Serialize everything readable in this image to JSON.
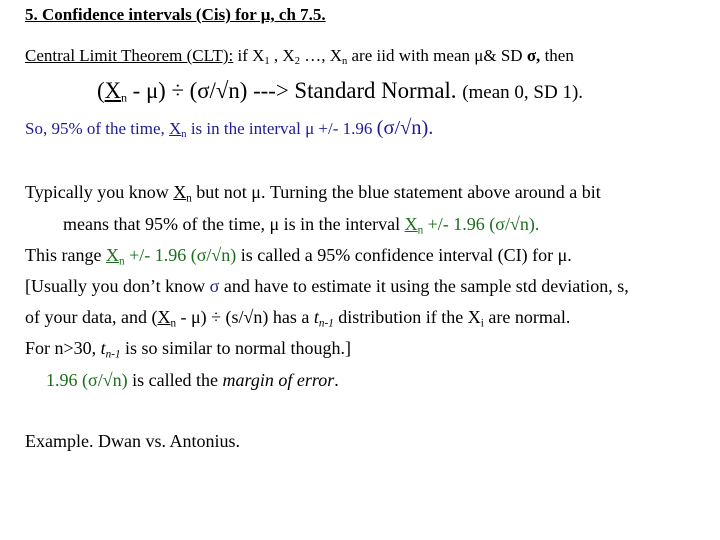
{
  "colors": {
    "blue": "#1c1c96",
    "green": "#1b6e1b"
  },
  "lines": [
    {
      "name": "slide-title",
      "segments": [
        {
          "t": "5. Confidence intervals (Cis) for μ, ch 7.5.",
          "c": "b u"
        }
      ]
    },
    {
      "name": "clt-statement",
      "segments": [
        {
          "t": "Central Limit Theorem (CLT):",
          "c": "u"
        },
        {
          "t": "   if X",
          "c": ""
        },
        {
          "t": "1",
          "c": "sub"
        },
        {
          "t": " , X",
          "c": ""
        },
        {
          "t": "2",
          "c": "sub"
        },
        {
          "t": " …, X",
          "c": ""
        },
        {
          "t": "n",
          "c": "sub"
        },
        {
          "t": "  are iid with mean μ& SD ",
          "c": ""
        },
        {
          "t": "σ,",
          "c": "b"
        },
        {
          "t": " then",
          "c": ""
        }
      ]
    },
    {
      "name": "clt-formula",
      "segments": [
        {
          "t": "(",
          "c": "big"
        },
        {
          "t": "X",
          "c": "big u"
        },
        {
          "t": "n",
          "c": "sub"
        },
        {
          "t": " - μ) ÷ (σ/√n)  ---> Standard Normal. ",
          "c": "big"
        },
        {
          "t": "(mean 0, SD 1).",
          "c": ""
        }
      ]
    },
    {
      "name": "blue-statement",
      "segments": [
        {
          "t": "So, 95% of the time, ",
          "c": "blue"
        },
        {
          "t": "X",
          "c": "blue u"
        },
        {
          "t": "n",
          "c": "blue sub"
        },
        {
          "t": " is in the interval μ +/-  1.96 ",
          "c": "blue"
        },
        {
          "t": "(σ/√n).",
          "c": "blue big"
        }
      ]
    },
    {
      "name": "typically-line",
      "segments": [
        {
          "t": "Typically you know ",
          "c": ""
        },
        {
          "t": "X",
          "c": "u"
        },
        {
          "t": "n",
          "c": "sub"
        },
        {
          "t": " but not μ. Turning the blue statement above around a bit",
          "c": ""
        }
      ]
    },
    {
      "name": "means-line",
      "segments": [
        {
          "t": "means that 95% of the time, μ is in the interval ",
          "c": ""
        },
        {
          "t": "X",
          "c": "green u"
        },
        {
          "t": "n",
          "c": "green sub"
        },
        {
          "t": " +/-  1.96 (σ/√n).",
          "c": "green"
        }
      ]
    },
    {
      "name": "range-line",
      "segments": [
        {
          "t": "This range ",
          "c": ""
        },
        {
          "t": "X",
          "c": "green u"
        },
        {
          "t": "n",
          "c": "green sub"
        },
        {
          "t": " +/-  1.96 (σ/√n)",
          "c": "green"
        },
        {
          "t": " is called a 95% confidence interval (CI) for μ.",
          "c": ""
        }
      ]
    },
    {
      "name": "usually-line",
      "segments": [
        {
          "t": "[Usually you don’t know ",
          "c": ""
        },
        {
          "t": "σ",
          "c": "blue"
        },
        {
          "t": " and have to estimate it using the sample std deviation, s,",
          "c": ""
        }
      ]
    },
    {
      "name": "data-line",
      "segments": [
        {
          "t": "of your data, and (",
          "c": ""
        },
        {
          "t": "X",
          "c": "u"
        },
        {
          "t": "n",
          "c": "sub"
        },
        {
          "t": " - μ) ÷ (s/√n) has a ",
          "c": ""
        },
        {
          "t": "t",
          "c": "i"
        },
        {
          "t": "n-1",
          "c": "i sub"
        },
        {
          "t": " distribution if the X",
          "c": ""
        },
        {
          "t": "i",
          "c": "sub"
        },
        {
          "t": " are normal.",
          "c": ""
        }
      ]
    },
    {
      "name": "n30-line",
      "segments": [
        {
          "t": "For n>30, ",
          "c": ""
        },
        {
          "t": "t",
          "c": "i"
        },
        {
          "t": "n-1",
          "c": "i sub"
        },
        {
          "t": " is so similar to normal though.]",
          "c": ""
        }
      ]
    },
    {
      "name": "margin-line",
      "segments": [
        {
          "t": "1.96 (σ/√n)",
          "c": "green"
        },
        {
          "t": " is called the ",
          "c": ""
        },
        {
          "t": "margin of error",
          "c": "i"
        },
        {
          "t": ".",
          "c": ""
        }
      ]
    },
    {
      "name": "example-line",
      "segments": [
        {
          "t": "Example. Dwan vs. Antonius.",
          "c": ""
        }
      ]
    }
  ]
}
